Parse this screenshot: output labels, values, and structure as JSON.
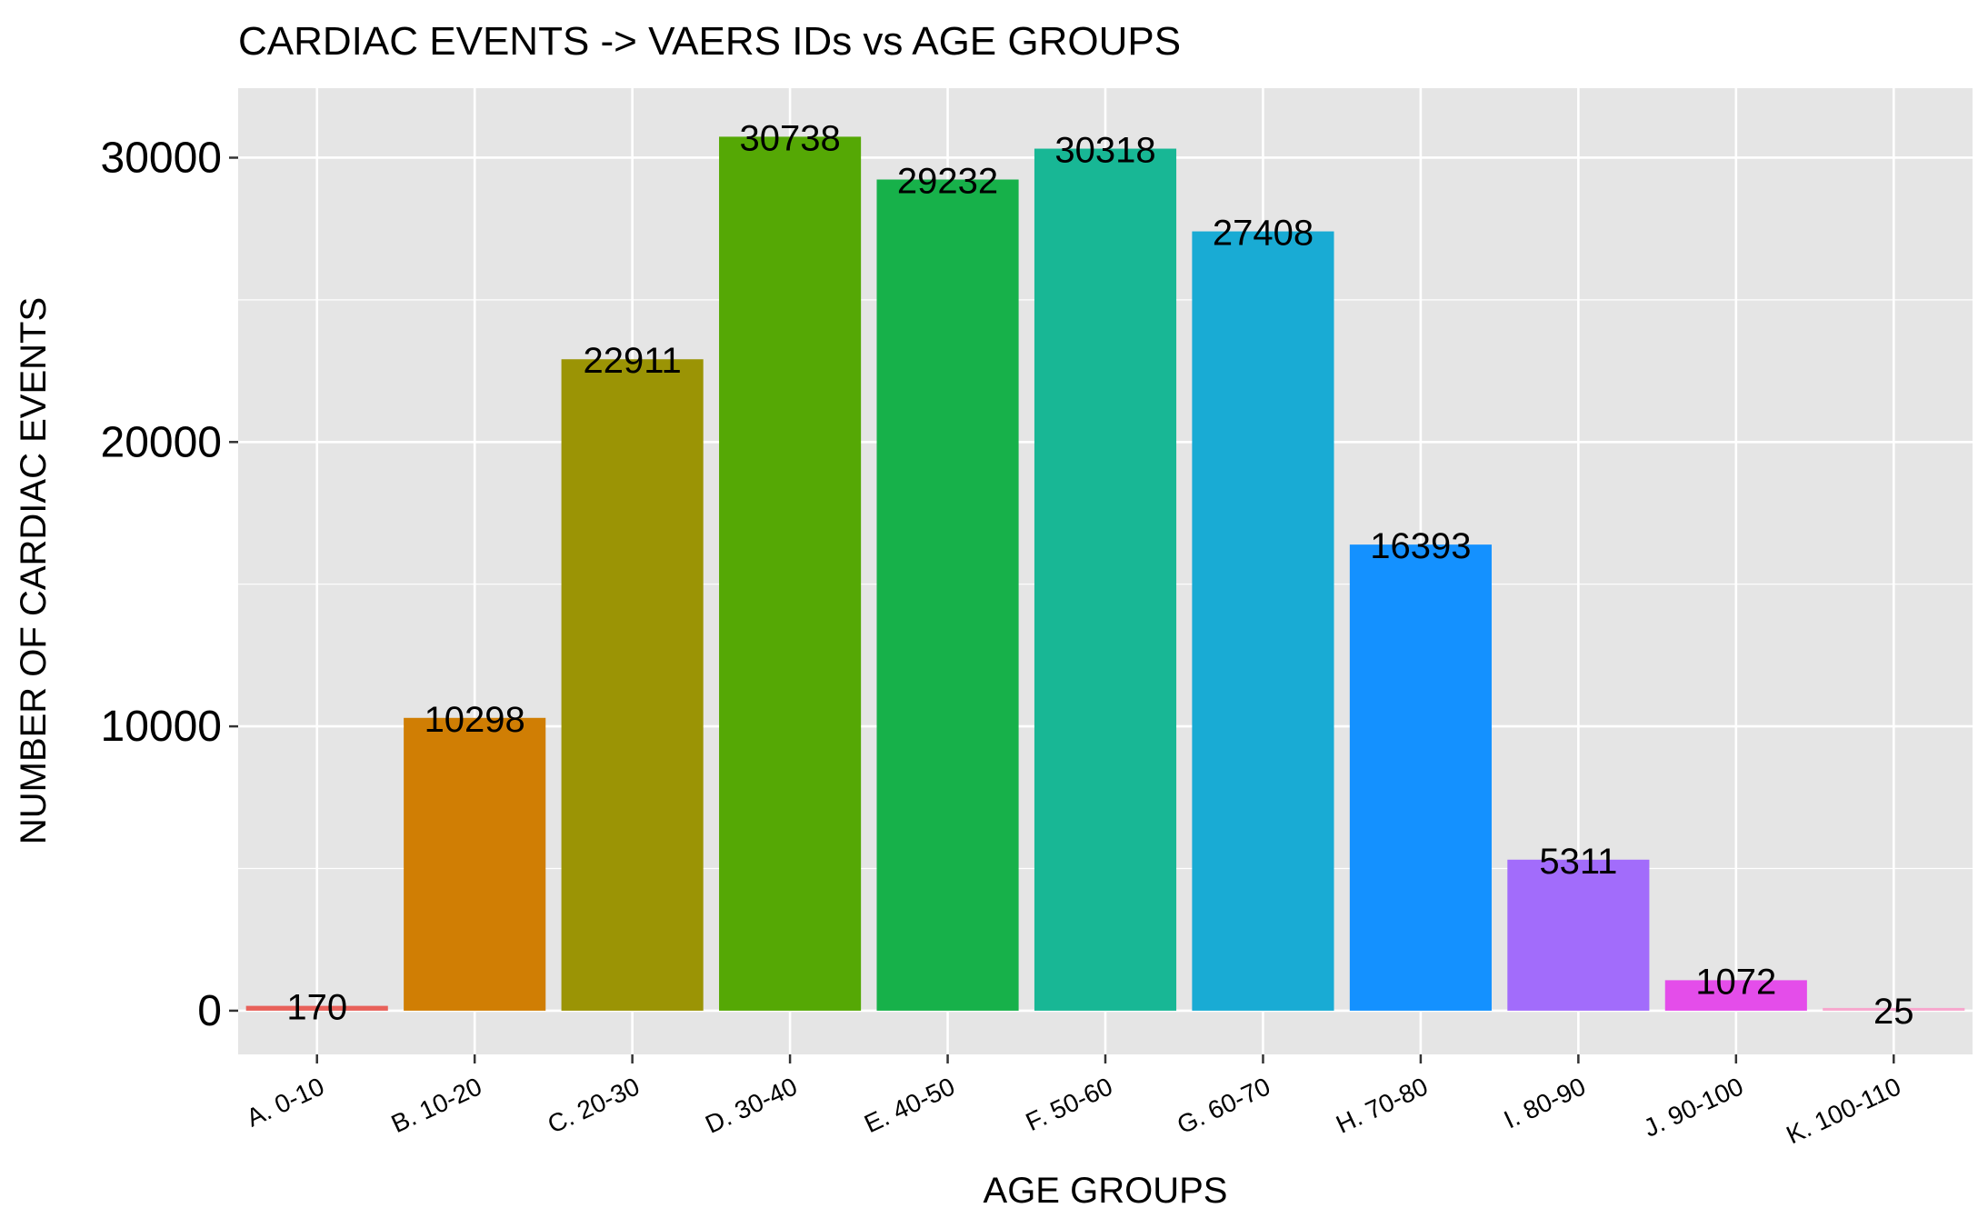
{
  "chart_data": {
    "type": "bar",
    "title": "CARDIAC EVENTS -> VAERS IDs vs AGE GROUPS",
    "xlabel": "AGE GROUPS",
    "ylabel": "NUMBER OF CARDIAC EVENTS",
    "categories": [
      "A. 0-10",
      "B. 10-20",
      "C. 20-30",
      "D. 30-40",
      "E. 40-50",
      "F. 50-60",
      "G. 60-70",
      "H. 70-80",
      "I. 80-90",
      "J. 90-100",
      "K. 100-110"
    ],
    "values": [
      170,
      10298,
      22911,
      30738,
      29232,
      30318,
      27408,
      16393,
      5311,
      1072,
      25
    ],
    "data_labels": [
      "170",
      "10298",
      "22911",
      "30738",
      "29232",
      "30318",
      "27408",
      "16393",
      "5311",
      "1072",
      "25"
    ],
    "colors": [
      "#F8766D",
      "#D39200",
      "#93AA00",
      "#00BA38",
      "#00C19F",
      "#00B9E3",
      "#619CFF",
      "#DB72FB",
      "#FF61C3",
      "#E7861B",
      "#00BA38"
    ],
    "bar_colors": [
      "#E8615A",
      "#D07E04",
      "#9B9405",
      "#55A805",
      "#17B14A",
      "#18B795",
      "#19ABD4",
      "#1491FF",
      "#A26CFB",
      "#E44DEA",
      "#F7A6CD"
    ],
    "y_ticks": [
      0,
      10000,
      20000,
      30000
    ],
    "y_tick_labels": [
      "0",
      "10000",
      "20000",
      "30000"
    ],
    "ylim": [
      -1537,
      32445
    ],
    "grid": true,
    "legend": "none",
    "panel_background": "#E5E5E5",
    "grid_color": "#FFFFFF"
  }
}
